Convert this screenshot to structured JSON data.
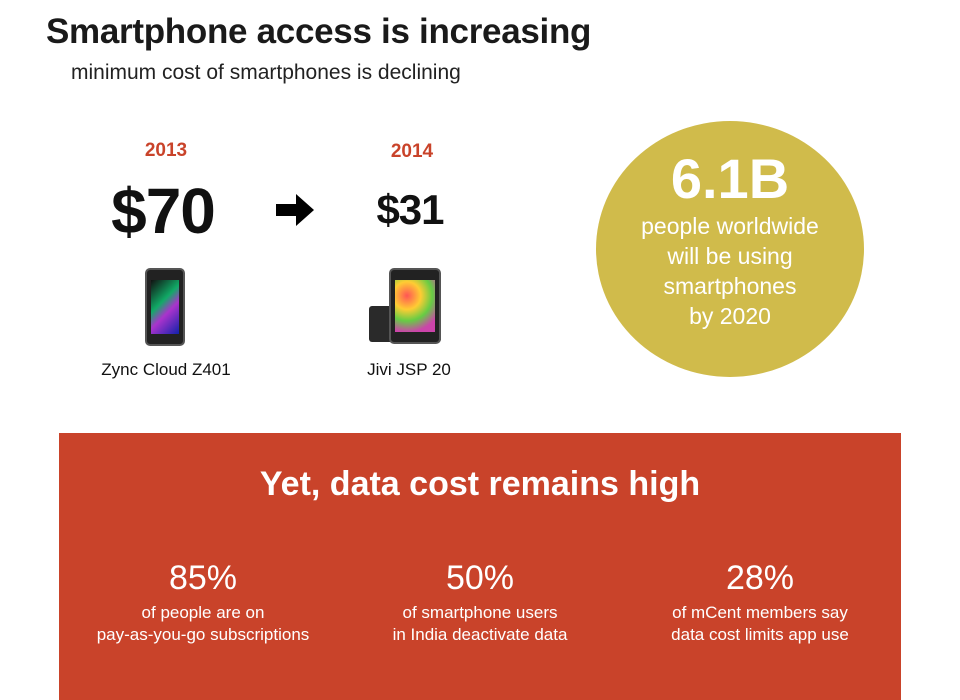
{
  "header": {
    "title": "Smartphone access is increasing",
    "subtitle": "minimum cost of smartphones is declining"
  },
  "comparison": {
    "before": {
      "year": "2013",
      "price": "$70",
      "model": "Zync Cloud Z401"
    },
    "arrow_icon": "arrow-right-icon",
    "after": {
      "year": "2014",
      "price": "$31",
      "model": "Jivi JSP 20"
    }
  },
  "circle": {
    "value": "6.1B",
    "lines": [
      "people worldwide",
      "will be using",
      "smartphones",
      "by 2020"
    ],
    "color": "#d0bb4b"
  },
  "band": {
    "title": "Yet, data cost remains high",
    "color": "#c9432a",
    "stats": [
      {
        "value": "85%",
        "lines": [
          "of people are on",
          "pay-as-you-go subscriptions"
        ]
      },
      {
        "value": "50%",
        "lines": [
          "of smartphone users",
          "in India deactivate data"
        ]
      },
      {
        "value": "28%",
        "lines": [
          "of mCent members say",
          "data cost limits app use"
        ]
      }
    ]
  }
}
